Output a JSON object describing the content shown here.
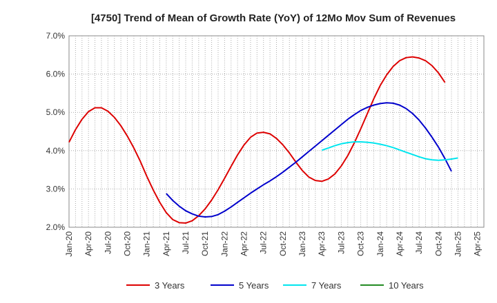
{
  "chart_data": {
    "type": "line",
    "title": "[4750]  Trend of Mean of Growth Rate (YoY) of 12Mo Mov Sum of Revenues",
    "xlabel": "",
    "ylabel": "",
    "ylim": [
      2.0,
      7.0
    ],
    "yticks": [
      "2.0%",
      "3.0%",
      "4.0%",
      "5.0%",
      "6.0%",
      "7.0%"
    ],
    "xticks": [
      "Jan-20",
      "Apr-20",
      "Jul-20",
      "Oct-20",
      "Jan-21",
      "Apr-21",
      "Jul-21",
      "Oct-21",
      "Jan-22",
      "Apr-22",
      "Jul-22",
      "Oct-22",
      "Jan-23",
      "Apr-23",
      "Jul-23",
      "Oct-23",
      "Jan-24",
      "Apr-24",
      "Jul-24",
      "Oct-24",
      "Jan-25",
      "Apr-25"
    ],
    "x_start": "Jan-20",
    "x_months": 64,
    "grid": true,
    "legend": "bottom",
    "series": [
      {
        "name": "3 Years",
        "color": "#dd0000",
        "start_month": 0,
        "values": [
          4.22,
          4.55,
          4.82,
          5.02,
          5.12,
          5.12,
          5.03,
          4.87,
          4.65,
          4.38,
          4.07,
          3.72,
          3.33,
          2.97,
          2.65,
          2.38,
          2.2,
          2.12,
          2.11,
          2.17,
          2.3,
          2.48,
          2.71,
          2.98,
          3.28,
          3.59,
          3.89,
          4.15,
          4.35,
          4.46,
          4.48,
          4.44,
          4.32,
          4.15,
          3.94,
          3.7,
          3.48,
          3.31,
          3.22,
          3.2,
          3.26,
          3.39,
          3.6,
          3.87,
          4.2,
          4.57,
          4.96,
          5.35,
          5.7,
          5.98,
          6.2,
          6.35,
          6.43,
          6.45,
          6.42,
          6.35,
          6.22,
          6.03,
          5.78
        ]
      },
      {
        "name": "5 Years",
        "color": "#0000cc",
        "start_month": 15,
        "values": [
          2.88,
          2.7,
          2.55,
          2.43,
          2.35,
          2.29,
          2.27,
          2.28,
          2.33,
          2.42,
          2.53,
          2.65,
          2.77,
          2.89,
          3.0,
          3.11,
          3.21,
          3.32,
          3.44,
          3.57,
          3.7,
          3.84,
          3.98,
          4.12,
          4.26,
          4.4,
          4.54,
          4.68,
          4.82,
          4.94,
          5.05,
          5.13,
          5.19,
          5.23,
          5.25,
          5.24,
          5.19,
          5.1,
          4.97,
          4.8,
          4.59,
          4.35,
          4.09,
          3.79,
          3.46
        ]
      },
      {
        "name": "7 Years",
        "color": "#00e5ee",
        "start_month": 39,
        "values": [
          4.01,
          4.07,
          4.13,
          4.18,
          4.21,
          4.23,
          4.23,
          4.22,
          4.2,
          4.17,
          4.13,
          4.08,
          4.02,
          3.96,
          3.9,
          3.84,
          3.79,
          3.76,
          3.75,
          3.76,
          3.78,
          3.81
        ]
      },
      {
        "name": "10 Years",
        "color": "#228b22",
        "start_month": 0,
        "values": []
      }
    ]
  }
}
